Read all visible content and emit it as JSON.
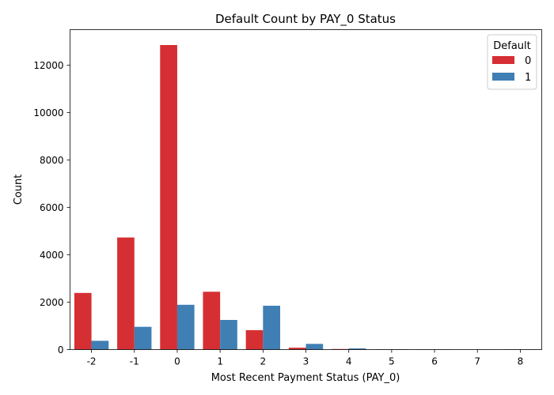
{
  "chart_data": {
    "type": "bar",
    "title": "Default Count by PAY_0 Status",
    "xlabel": "Most Recent Payment Status (PAY_0)",
    "ylabel": "Count",
    "categories": [
      "-2",
      "-1",
      "0",
      "1",
      "2",
      "3",
      "4",
      "5",
      "6",
      "7",
      "8"
    ],
    "ylim": [
      0,
      13500
    ],
    "yticks": [
      0,
      2000,
      4000,
      6000,
      8000,
      10000,
      12000
    ],
    "ytick_labels": [
      "0",
      "2000",
      "4000",
      "6000",
      "8000",
      "10000",
      "12000"
    ],
    "grid": false,
    "legend": {
      "title": "Default",
      "placement": "top-right"
    },
    "series": [
      {
        "name": "0",
        "color": "#d62f33",
        "values": [
          2390,
          4730,
          12850,
          2440,
          820,
          80,
          25,
          12,
          8,
          0,
          12
        ]
      },
      {
        "name": "1",
        "color": "#3f7fb4",
        "values": [
          370,
          960,
          1890,
          1250,
          1850,
          240,
          50,
          14,
          10,
          7,
          8
        ]
      }
    ]
  }
}
